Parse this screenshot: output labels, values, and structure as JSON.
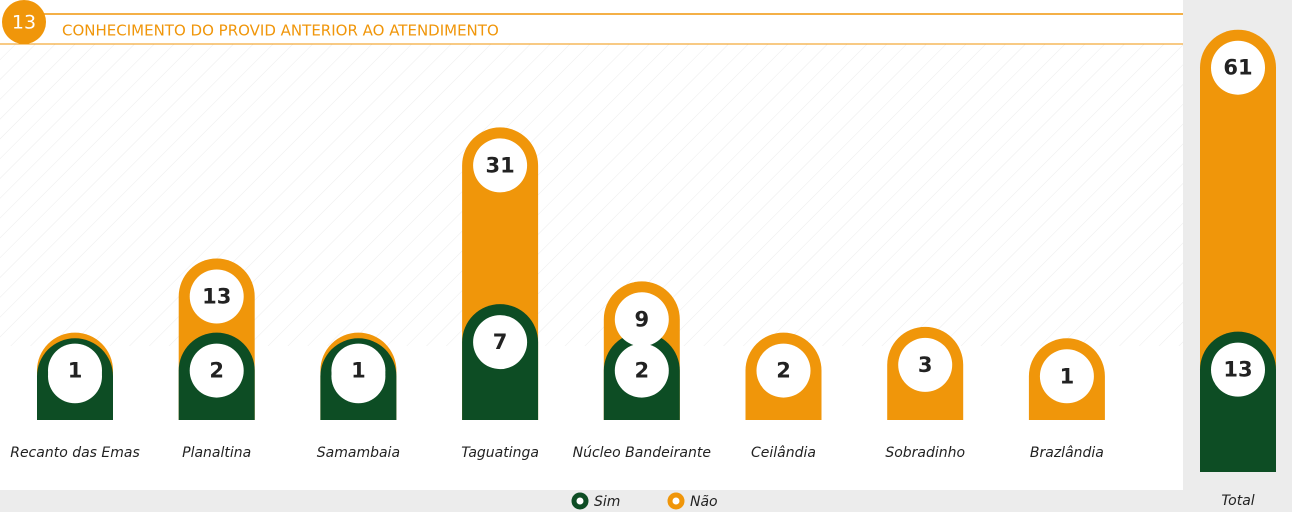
{
  "badge": "13",
  "chart_data": {
    "type": "stacked-pill-bar",
    "title": "CONHECIMENTO DO PROVID ANTERIOR AO ATENDIMENTO",
    "categories": [
      "Recanto das Emas",
      "Planaltina",
      "Samambaia",
      "Taguatinga",
      "Núcleo Bandeirante",
      "Ceilândia",
      "Sobradinho",
      "Brazlândia"
    ],
    "series": [
      {
        "name": "Sim",
        "color": "#0d4d24",
        "values": [
          1,
          2,
          1,
          7,
          2,
          null,
          null,
          null
        ]
      },
      {
        "name": "Não",
        "color": "#f0960a",
        "values": [
          1,
          13,
          1,
          31,
          9,
          2,
          3,
          1
        ]
      }
    ],
    "total": {
      "label": "Total",
      "values": [
        13,
        61
      ]
    }
  }
}
